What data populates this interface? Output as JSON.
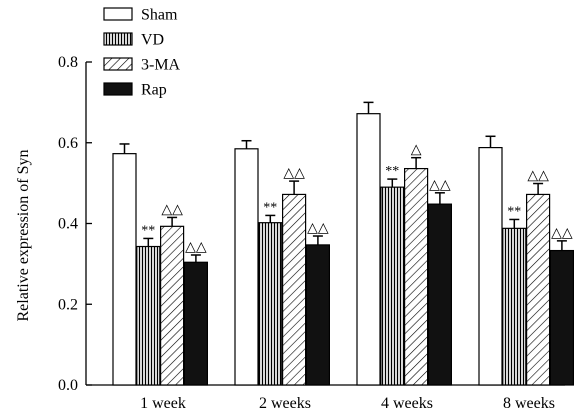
{
  "chart_data": {
    "type": "bar",
    "title": "",
    "xlabel": "",
    "ylabel": "Relative expression of Syn",
    "ylim": [
      0,
      0.8
    ],
    "yticks": [
      "0.0",
      "0.2",
      "0.4",
      "0.6",
      "0.8"
    ],
    "categories": [
      "1 week",
      "2 weeks",
      "4 weeks",
      "8 weeks"
    ],
    "legend_position": "top-left",
    "series": [
      {
        "name": "Sham",
        "pattern": "white",
        "values": [
          0.573,
          0.585,
          0.672,
          0.588
        ],
        "errors": [
          0.024,
          0.02,
          0.028,
          0.028
        ],
        "marks": [
          "",
          "",
          "",
          ""
        ]
      },
      {
        "name": "VD",
        "pattern": "vertical-stripes",
        "values": [
          0.343,
          0.402,
          0.49,
          0.388
        ],
        "errors": [
          0.02,
          0.018,
          0.02,
          0.022
        ],
        "marks": [
          "**",
          "**",
          "**",
          "**"
        ]
      },
      {
        "name": "3-MA",
        "pattern": "diagonal-stripes",
        "values": [
          0.393,
          0.472,
          0.536,
          0.472
        ],
        "errors": [
          0.022,
          0.033,
          0.027,
          0.027
        ],
        "marks": [
          "△△",
          "△△",
          "△",
          "△△"
        ]
      },
      {
        "name": "Rap",
        "pattern": "black",
        "values": [
          0.304,
          0.347,
          0.448,
          0.333
        ],
        "errors": [
          0.018,
          0.022,
          0.028,
          0.024
        ],
        "marks": [
          "△△",
          "△△",
          "△△",
          "△△"
        ]
      }
    ]
  }
}
